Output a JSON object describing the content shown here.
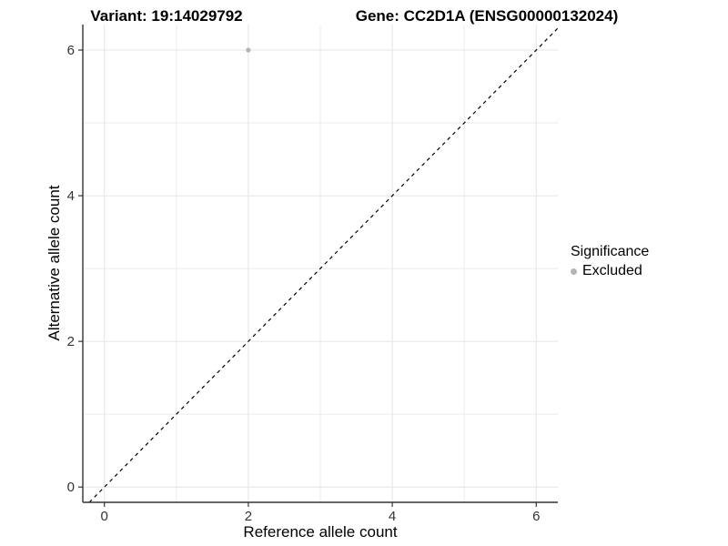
{
  "header": {
    "variant_title": "Variant: 19:14029792",
    "gene_title": "Gene: CC2D1A (ENSG00000132024)"
  },
  "chart_data": {
    "type": "scatter",
    "title_left": "Variant: 19:14029792",
    "title_right": "Gene: CC2D1A (ENSG00000132024)",
    "xlabel": "Reference allele count",
    "ylabel": "Alternative allele count",
    "xlim": [
      -0.3,
      6.3
    ],
    "ylim": [
      -0.21,
      6.35
    ],
    "xticks": [
      0,
      2,
      4,
      6
    ],
    "yticks": [
      0,
      2,
      4,
      6
    ],
    "minor_xticks": [
      1,
      3,
      5
    ],
    "minor_yticks": [
      1,
      3,
      5
    ],
    "grid": true,
    "series": [
      {
        "name": "Excluded",
        "color": "#b4b4b4",
        "points": [
          {
            "x": 2,
            "y": 6
          }
        ]
      }
    ],
    "reference_line": {
      "type": "identity",
      "style": "dashed",
      "color": "#000000",
      "from": -0.21,
      "to": 6.3
    },
    "legend": {
      "title": "Significance",
      "position": "right",
      "items": [
        {
          "label": "Excluded",
          "color": "#b4b4b4"
        }
      ]
    }
  },
  "colors": {
    "background": "#ffffff",
    "grid_major": "#e4e4e4",
    "grid_minor": "#ebebeb",
    "axis_line": "#333333",
    "tick_mark": "#333333",
    "tick_label": "#333333",
    "point": "#b4b4b4"
  }
}
